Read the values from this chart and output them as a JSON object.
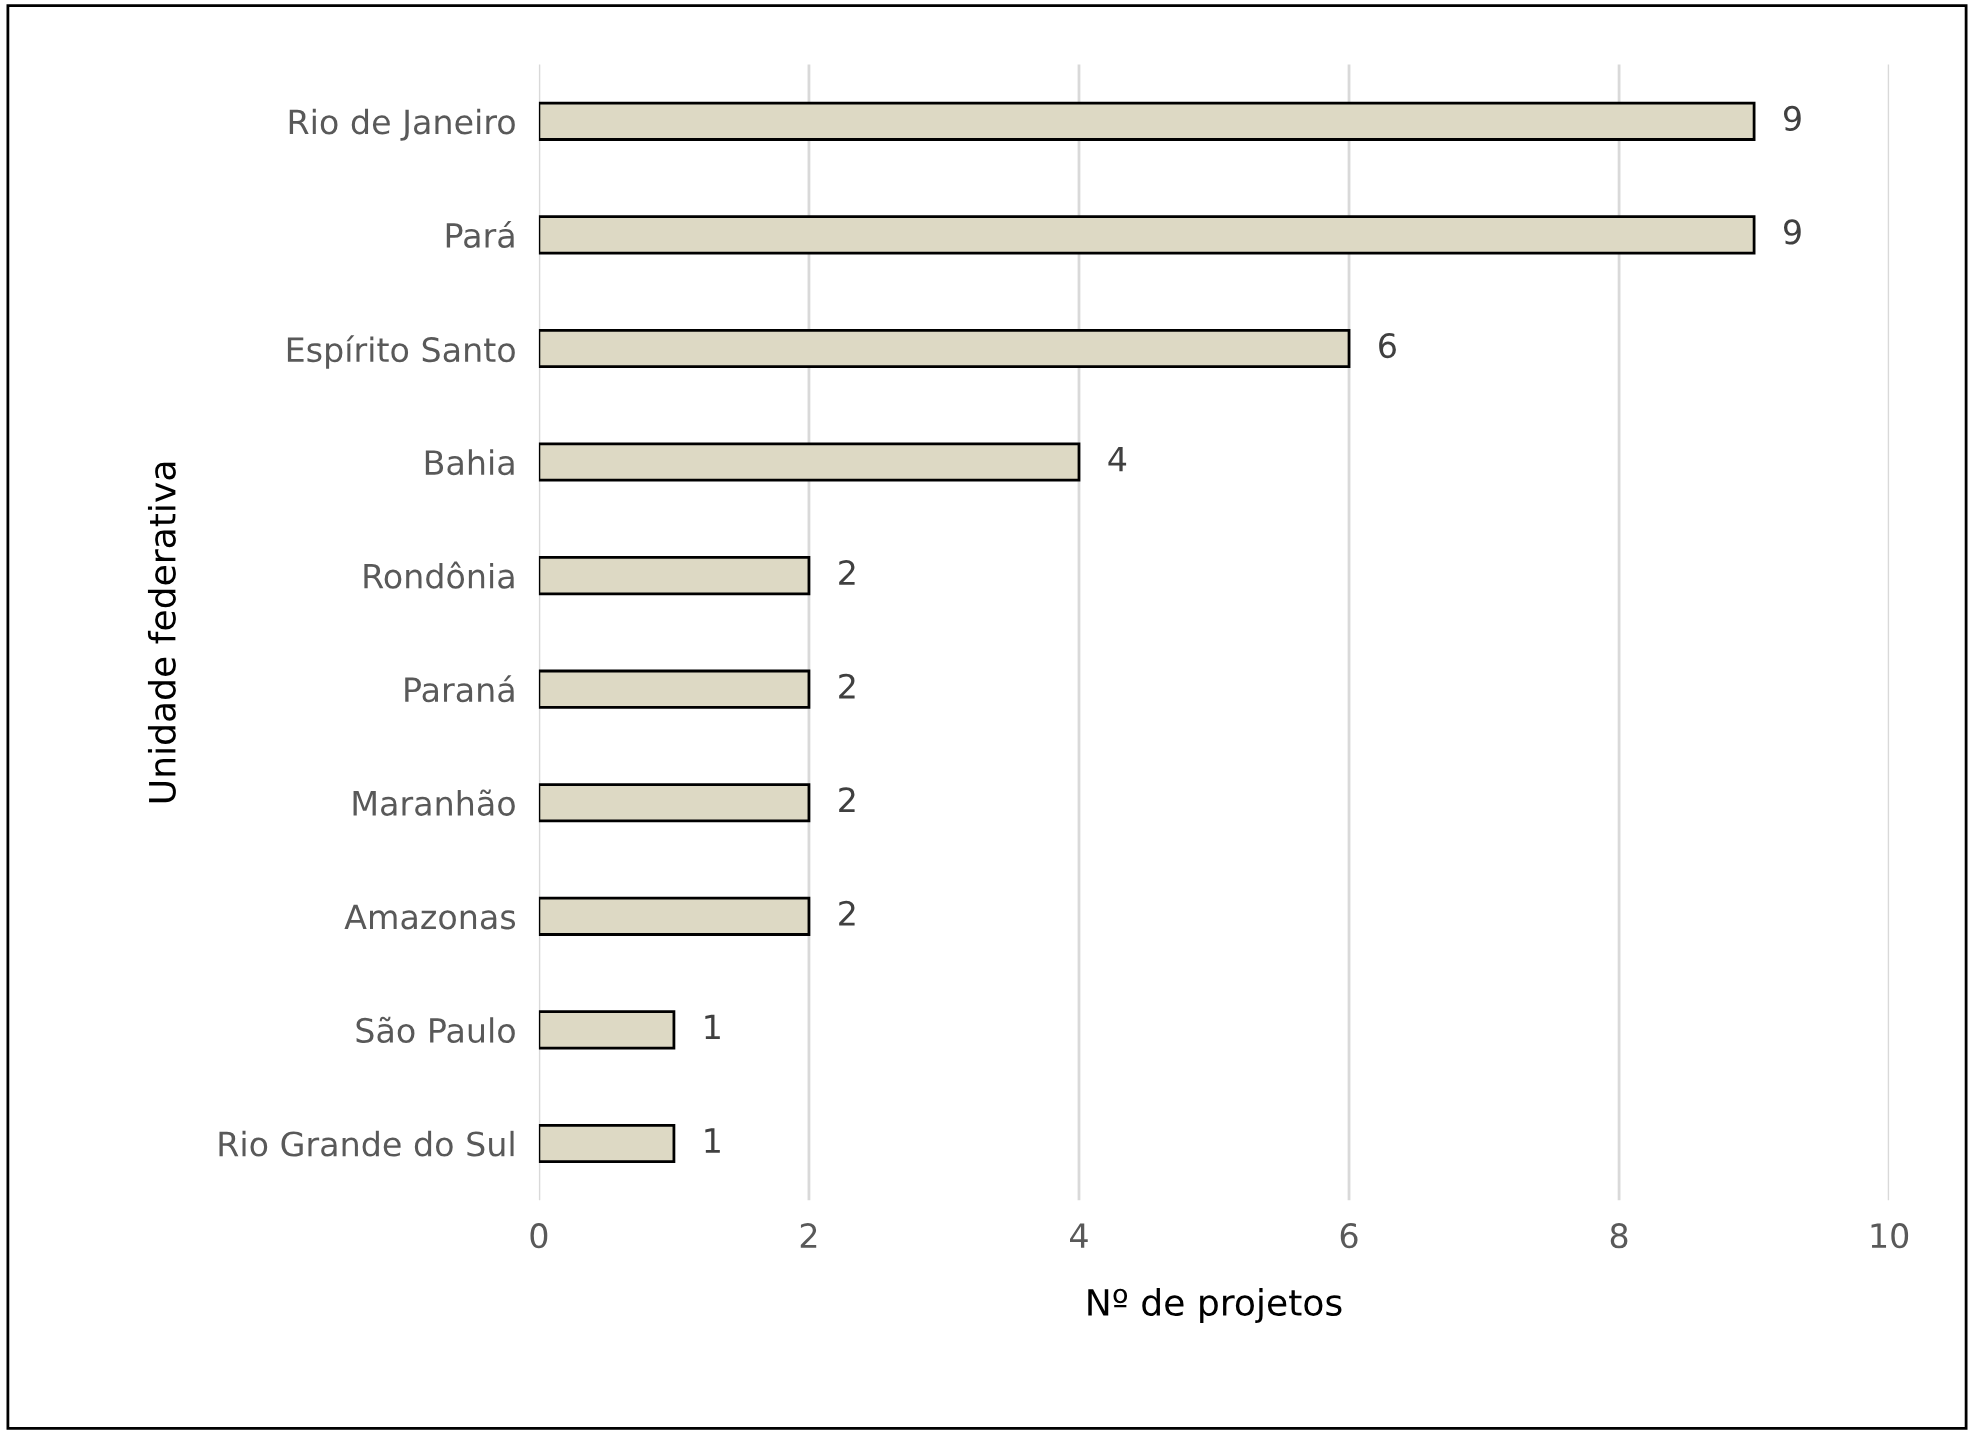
{
  "chart_data": {
    "type": "bar",
    "orientation": "horizontal",
    "xlabel": "Nº de projetos",
    "ylabel": "Unidade federativa",
    "categories": [
      "Rio de Janeiro",
      "Pará",
      "Espírito Santo",
      "Bahia",
      "Rondônia",
      "Paraná",
      "Maranhão",
      "Amazonas",
      "São Paulo",
      "Rio Grande do Sul"
    ],
    "values": [
      9,
      9,
      6,
      4,
      2,
      2,
      2,
      2,
      1,
      1
    ],
    "color": "#ddd9c4",
    "xlim": [
      0,
      10
    ],
    "xticks": [
      0,
      2,
      4,
      6,
      8,
      10
    ],
    "grid": "x",
    "data_labels": true
  }
}
